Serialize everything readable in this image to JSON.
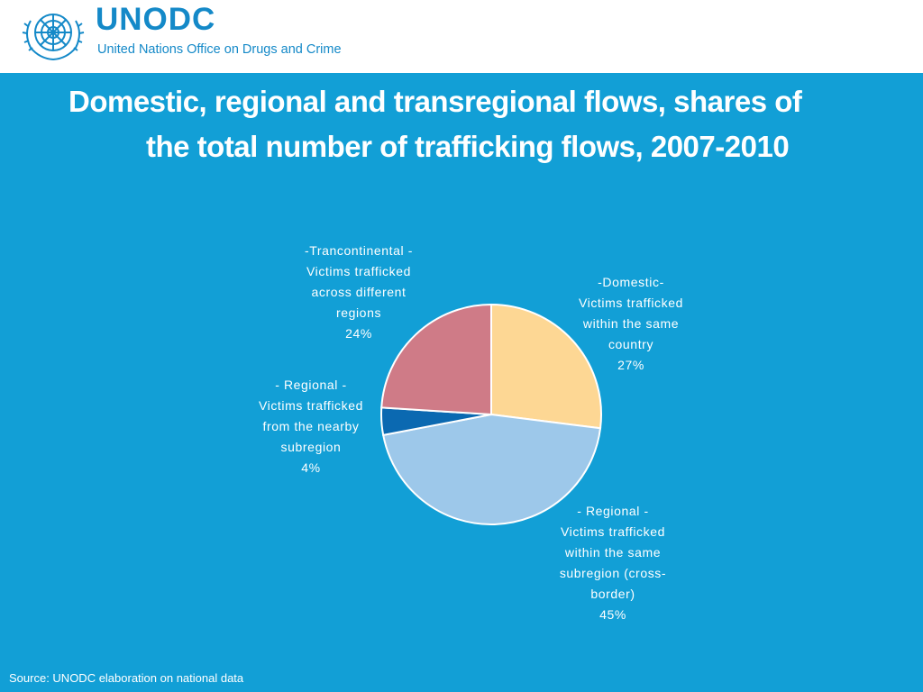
{
  "header": {
    "org_name": "UNODC",
    "org_subtitle": "United Nations Office on Drugs and Crime",
    "emblem_icon": "un-emblem-icon",
    "brand_color": "#1489c8"
  },
  "slide": {
    "title_line1": "Domestic, regional and transregional flows, shares of",
    "title_line2": "the total number of trafficking flows, 2007-2010",
    "background_color": "#129fd6",
    "source": "Source: UNODC elaboration on national data"
  },
  "chart_data": {
    "type": "pie",
    "title": "Domestic, regional and transregional flows, shares of the total number of trafficking flows, 2007-2010",
    "start_angle_deg": 0,
    "direction": "clockwise",
    "slices": [
      {
        "label_lines": [
          "-Domestic-",
          "Victims trafficked",
          "within the same",
          "country"
        ],
        "value": 27,
        "value_label": "27%",
        "color": "#fdd794"
      },
      {
        "label_lines": [
          "- Regional -",
          "Victims trafficked",
          "within the same",
          "subregion (cross-",
          "border)"
        ],
        "value": 45,
        "value_label": "45%",
        "color": "#9dc8ea"
      },
      {
        "label_lines": [
          "- Regional -",
          "Victims trafficked",
          "from the nearby",
          "subregion"
        ],
        "value": 4,
        "value_label": "4%",
        "color": "#0b69b1"
      },
      {
        "label_lines": [
          "-Trancontinental -",
          "Victims trafficked",
          "across different",
          "regions"
        ],
        "value": 24,
        "value_label": "24%",
        "color": "#cf7b87"
      }
    ]
  }
}
